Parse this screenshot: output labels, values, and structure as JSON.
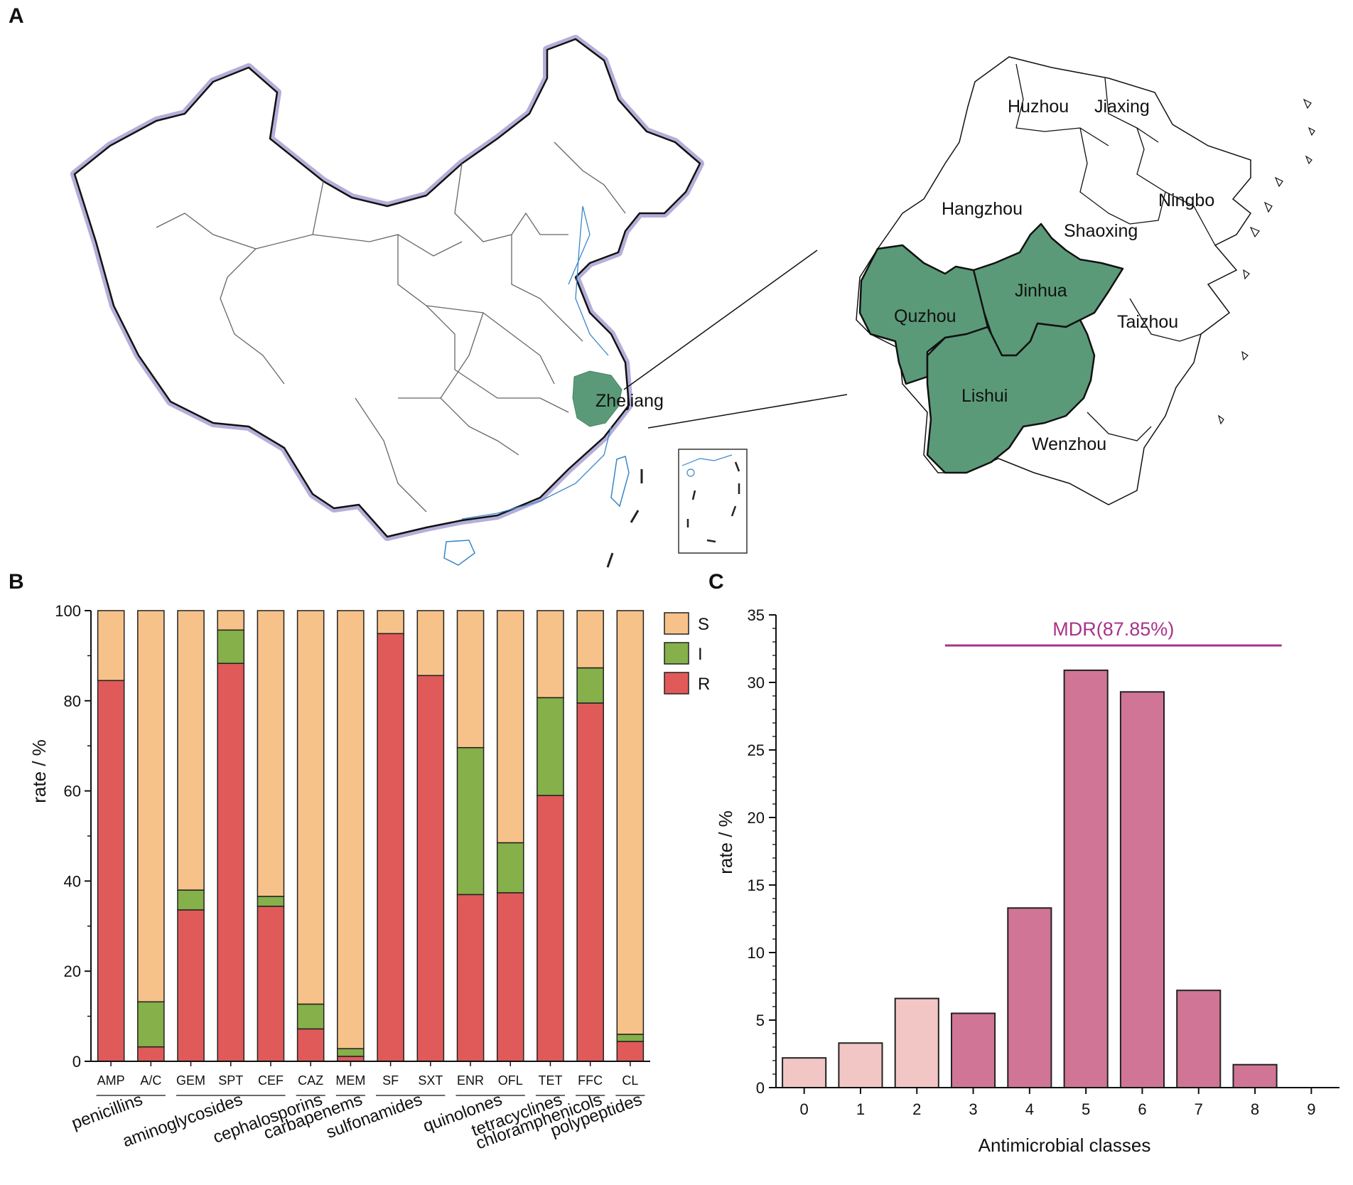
{
  "panels": {
    "a": "A",
    "b": "B",
    "c": "C"
  },
  "map": {
    "highlight_province": "Zhejiang",
    "cities": [
      {
        "name": "Huzhou",
        "sampled": false
      },
      {
        "name": "Jiaxing",
        "sampled": false
      },
      {
        "name": "Hangzhou",
        "sampled": false
      },
      {
        "name": "Ningbo",
        "sampled": false
      },
      {
        "name": "Shaoxing",
        "sampled": false
      },
      {
        "name": "Jinhua",
        "sampled": true
      },
      {
        "name": "Quzhou",
        "sampled": true
      },
      {
        "name": "Taizhou",
        "sampled": false
      },
      {
        "name": "Lishui",
        "sampled": true
      },
      {
        "name": "Wenzhou",
        "sampled": false
      }
    ],
    "colors": {
      "sampled": "#5a9a78",
      "border": "#111111",
      "halo": "#b3afd9",
      "water": "#3a86c8"
    }
  },
  "chart_data": [
    {
      "type": "bar",
      "stacked": true,
      "ylabel": "rate / %",
      "ylim": [
        0,
        100
      ],
      "yticks": [
        0,
        20,
        40,
        60,
        80,
        100
      ],
      "categories": [
        "AMP",
        "A/C",
        "GEM",
        "SPT",
        "CEF",
        "CAZ",
        "MEM",
        "SF",
        "SXT",
        "ENR",
        "OFL",
        "TET",
        "FFC",
        "CL"
      ],
      "groups": [
        {
          "name": "penicillins",
          "members": [
            "AMP",
            "A/C"
          ]
        },
        {
          "name": "aminoglycosides",
          "members": [
            "GEM",
            "SPT",
            "CEF"
          ]
        },
        {
          "name": "cephalosporins",
          "members": [
            "CAZ"
          ]
        },
        {
          "name": "carbapenems",
          "members": [
            "MEM"
          ]
        },
        {
          "name": "sulfonamides",
          "members": [
            "SF",
            "SXT"
          ]
        },
        {
          "name": "quinolones",
          "members": [
            "ENR",
            "OFL"
          ]
        },
        {
          "name": "tetracyclines",
          "members": [
            "TET"
          ]
        },
        {
          "name": "chloramphenicols",
          "members": [
            "FFC"
          ]
        },
        {
          "name": "polypeptides",
          "members": [
            "CL"
          ]
        }
      ],
      "series": [
        {
          "name": "R",
          "color": "#e05a5a",
          "values": [
            84.5,
            3.2,
            33.6,
            88.3,
            34.4,
            7.2,
            1.1,
            94.9,
            85.6,
            37.0,
            37.4,
            59.0,
            79.5,
            4.4
          ]
        },
        {
          "name": "I",
          "color": "#85b04a",
          "values": [
            0.0,
            10.0,
            4.4,
            7.4,
            2.2,
            5.5,
            1.7,
            0.0,
            0.0,
            32.6,
            11.1,
            21.7,
            7.8,
            1.6
          ]
        },
        {
          "name": "S",
          "color": "#f6c28a",
          "values": [
            15.5,
            86.8,
            62.0,
            4.3,
            63.4,
            87.3,
            97.2,
            5.1,
            14.4,
            30.4,
            51.5,
            19.3,
            12.7,
            94.0
          ]
        }
      ],
      "legend": {
        "position": "top-right",
        "order": [
          "S",
          "I",
          "R"
        ]
      }
    },
    {
      "type": "bar",
      "xlabel": "Antimicrobial classes",
      "ylabel": "rate / %",
      "ylim": [
        0,
        35
      ],
      "yticks": [
        0,
        5,
        10,
        15,
        20,
        25,
        30,
        35
      ],
      "categories": [
        "0",
        "1",
        "2",
        "3",
        "4",
        "5",
        "6",
        "7",
        "8",
        "9"
      ],
      "values": [
        2.2,
        3.3,
        6.6,
        5.5,
        13.3,
        30.9,
        29.3,
        7.2,
        1.7,
        0
      ],
      "colors": {
        "non_mdr": "#f3c6c6",
        "mdr": "#d17596",
        "annotation": "#a8338a"
      },
      "mdr_from_class": 3,
      "annotation": {
        "text": "MDR(87.85%)",
        "from": "3",
        "to": "8"
      }
    }
  ]
}
